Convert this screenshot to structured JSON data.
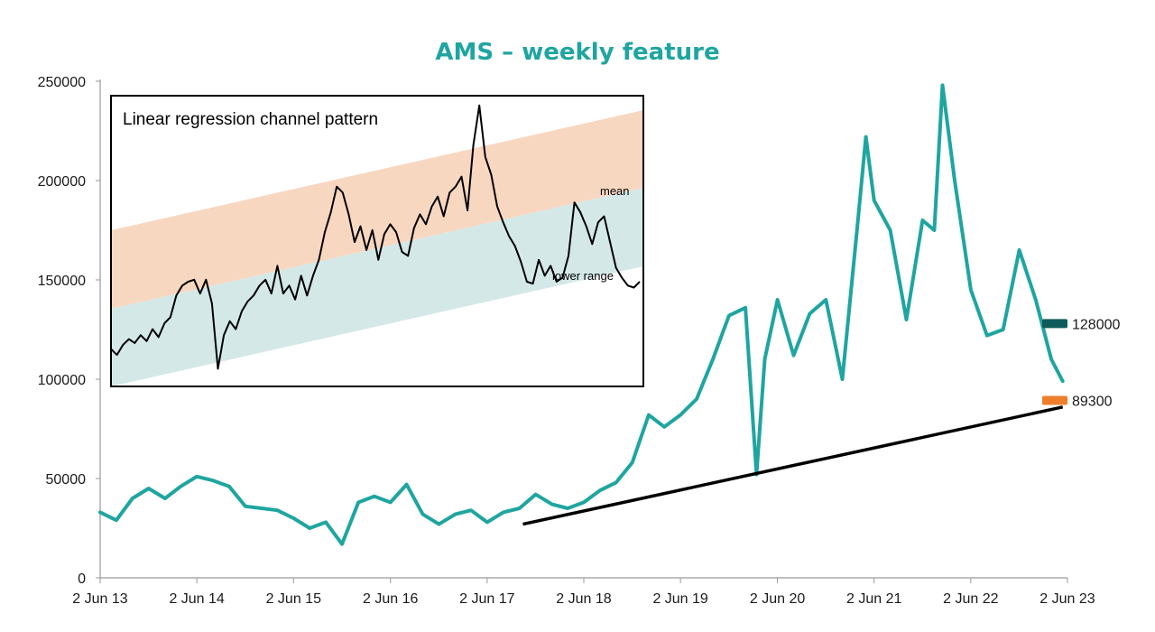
{
  "chart_data": [
    {
      "type": "line",
      "title": "AMS – weekly feature",
      "title_color": "#1fa5a0",
      "xlabel": "",
      "ylabel": "",
      "ylim": [
        0,
        250000
      ],
      "y_ticks": [
        0,
        50000,
        100000,
        150000,
        200000,
        250000
      ],
      "y_tick_labels": [
        "0",
        "50000",
        "100000",
        "150000",
        "200000",
        "250000"
      ],
      "x_ticks": [
        "2013-06-02",
        "2014-06-02",
        "2015-06-02",
        "2016-06-02",
        "2017-06-02",
        "2018-06-02",
        "2019-06-02",
        "2020-06-02",
        "2021-06-02",
        "2022-06-02",
        "2023-06-02"
      ],
      "x_tick_labels": [
        "2 Jun 13",
        "2 Jun 14",
        "2 Jun 15",
        "2 Jun 16",
        "2 Jun 17",
        "2 Jun 18",
        "2 Jun 19",
        "2 Jun 20",
        "2 Jun 21",
        "2 Jun 22",
        "2 Jun 23"
      ],
      "grid": false,
      "legend": "none",
      "series": [
        {
          "color": "#1fa5a0",
          "x": [
            "2013-06-02",
            "2013-08-02",
            "2013-10-02",
            "2013-12-02",
            "2014-02-02",
            "2014-04-02",
            "2014-06-02",
            "2014-08-02",
            "2014-10-02",
            "2014-12-02",
            "2015-02-02",
            "2015-04-02",
            "2015-06-02",
            "2015-08-02",
            "2015-10-02",
            "2015-12-02",
            "2016-02-02",
            "2016-04-02",
            "2016-06-02",
            "2016-08-02",
            "2016-10-02",
            "2016-12-02",
            "2017-02-02",
            "2017-04-02",
            "2017-06-02",
            "2017-08-02",
            "2017-10-02",
            "2017-12-02",
            "2018-02-02",
            "2018-04-02",
            "2018-06-02",
            "2018-08-02",
            "2018-10-02",
            "2018-12-02",
            "2019-02-02",
            "2019-04-02",
            "2019-06-02",
            "2019-08-02",
            "2019-10-02",
            "2019-12-02",
            "2020-02-02",
            "2020-03-15",
            "2020-04-15",
            "2020-06-02",
            "2020-08-02",
            "2020-10-02",
            "2020-12-02",
            "2021-02-02",
            "2021-04-02",
            "2021-05-02",
            "2021-06-02",
            "2021-08-02",
            "2021-10-02",
            "2021-12-02",
            "2022-01-15",
            "2022-02-15",
            "2022-04-02",
            "2022-06-02",
            "2022-08-02",
            "2022-10-02",
            "2022-12-02",
            "2023-02-02",
            "2023-04-02",
            "2023-05-15"
          ],
          "values": [
            33000,
            29000,
            40000,
            45000,
            40000,
            46000,
            51000,
            49000,
            46000,
            36000,
            35000,
            34000,
            30000,
            25000,
            28000,
            17000,
            38000,
            41000,
            38000,
            47000,
            32000,
            27000,
            32000,
            34000,
            28000,
            33000,
            35000,
            42000,
            37000,
            35000,
            38000,
            44000,
            48000,
            58000,
            82000,
            76000,
            82000,
            90000,
            110000,
            132000,
            136000,
            52000,
            110000,
            140000,
            112000,
            133000,
            140000,
            100000,
            180000,
            222000,
            190000,
            175000,
            130000,
            180000,
            175000,
            248000,
            200000,
            145000,
            122000,
            125000,
            165000,
            140000,
            110000,
            99000
          ]
        }
      ],
      "trendline": {
        "x": [
          "2017-10-15",
          "2023-05-15"
        ],
        "values": [
          27000,
          86000
        ],
        "color": "#000000"
      },
      "markers": [
        {
          "value": 128000,
          "label": "128000",
          "color": "#0d5c5a"
        },
        {
          "value": 89300,
          "label": "89300",
          "color": "#ef7e2a"
        }
      ]
    },
    {
      "type": "line",
      "title": "Linear regression channel pattern",
      "annotations": [
        "mean",
        "lower range"
      ],
      "grid": false,
      "legend": "none",
      "bands": [
        {
          "color": "#f8d7c0",
          "description": "upper band"
        },
        {
          "color": "#d4e8e8",
          "description": "lower band"
        }
      ],
      "series": [
        {
          "color": "#000000",
          "values": [
            118,
            115,
            120,
            123,
            121,
            125,
            122,
            128,
            124,
            131,
            134,
            145,
            150,
            152,
            153,
            146,
            153,
            141,
            108,
            125,
            132,
            128,
            137,
            142,
            145,
            150,
            153,
            146,
            160,
            146,
            150,
            143,
            155,
            145,
            155,
            163,
            177,
            187,
            200,
            197,
            186,
            172,
            180,
            168,
            178,
            163,
            176,
            181,
            177,
            167,
            165,
            179,
            186,
            181,
            190,
            195,
            185,
            197,
            200,
            205,
            188,
            221,
            241,
            215,
            206,
            190,
            182,
            175,
            170,
            162,
            152,
            151,
            163,
            155,
            160,
            152,
            154,
            165,
            192,
            187,
            180,
            171,
            182,
            185,
            172,
            159,
            154,
            150,
            149,
            152
          ]
        }
      ]
    }
  ]
}
